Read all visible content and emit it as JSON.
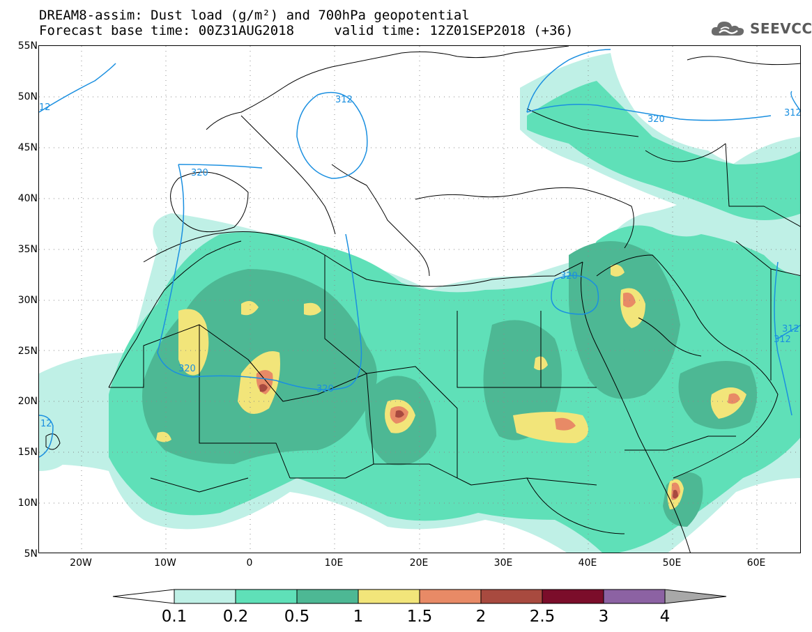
{
  "header": {
    "title": "DREAM8-assim: Dust load (g/m²) and 700hPa geopotential",
    "base_time": "Forecast base time: 00Z31AUG2018     valid time: 12Z01SEP2018 (+36)"
  },
  "logo": {
    "text": "SEEVCCC",
    "icon": "cloud-icon"
  },
  "map": {
    "lat_labels": [
      "55N",
      "50N",
      "45N",
      "40N",
      "35N",
      "30N",
      "25N",
      "20N",
      "15N",
      "10N",
      "5N"
    ],
    "lon_labels": [
      "20W",
      "10W",
      "0",
      "10E",
      "20E",
      "30E",
      "40E",
      "50E",
      "60E"
    ],
    "geopotential_labels": [
      "312",
      "312",
      "320",
      "320",
      "320",
      "320",
      "12",
      "12",
      "320",
      "312",
      "312"
    ],
    "colors": {
      "contour": "#1a8fe0",
      "border": "#000000"
    }
  },
  "colorbar": {
    "labels": [
      "0.1",
      "0.2",
      "0.5",
      "1",
      "1.5",
      "2",
      "2.5",
      "3",
      "4"
    ],
    "colors": [
      "#bff0e6",
      "#5fe0b8",
      "#4db894",
      "#f2e57a",
      "#e88a66",
      "#a84a3f",
      "#7b0d2a",
      "#8c62a3"
    ],
    "end_low_color": "#ffffff",
    "end_high_color": "#a8a8a8"
  }
}
